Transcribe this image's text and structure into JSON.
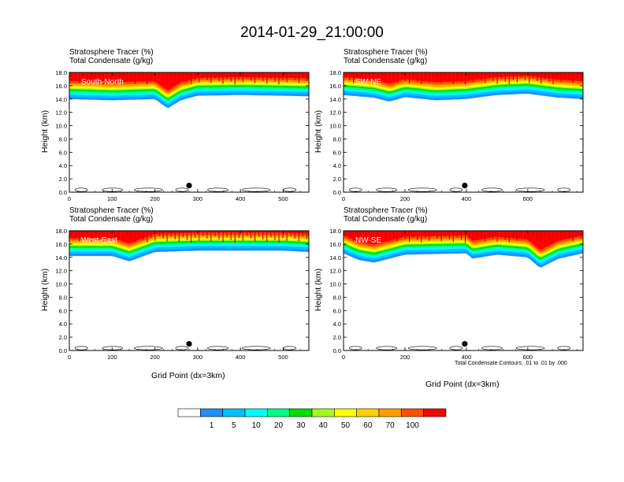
{
  "title": "2014-01-29_21:00:00",
  "panel_subtitle_line1": "Stratosphere Tracer   (%)",
  "panel_subtitle_line2": "Total Condensate   (g/kg)",
  "ylabel": "Height (km)",
  "xlabel": "Grid Point (dx=3km)",
  "contour_note": "Total Condensate Contours: .01 to .01 by .000",
  "colorbar": {
    "labels": [
      "1",
      "5",
      "10",
      "20",
      "30",
      "40",
      "50",
      "60",
      "70",
      "100"
    ],
    "colors": [
      "#ffffff",
      "#1e90ff",
      "#00bfff",
      "#00ffff",
      "#00ff80",
      "#00e000",
      "#a0ff20",
      "#ffff00",
      "#ffd000",
      "#ffa000",
      "#ff5000",
      "#ff0000"
    ]
  },
  "chart_data": [
    {
      "type": "heatmap",
      "label": "South-North",
      "xlim": [
        0,
        560
      ],
      "ylim": [
        0,
        18
      ],
      "xticks": [
        0,
        100,
        200,
        300,
        400,
        500
      ],
      "yticks": [
        0,
        2,
        4,
        6,
        8,
        10,
        12,
        14,
        16,
        18
      ],
      "tropopause_base_km": [
        [
          0,
          14.0
        ],
        [
          100,
          13.8
        ],
        [
          200,
          14.0
        ],
        [
          230,
          12.6
        ],
        [
          260,
          13.8
        ],
        [
          300,
          14.5
        ],
        [
          400,
          14.6
        ],
        [
          500,
          14.5
        ],
        [
          560,
          14.4
        ]
      ],
      "marker": [
        280,
        1.0
      ]
    },
    {
      "type": "heatmap",
      "label": "SW-NE",
      "xlim": [
        0,
        780
      ],
      "ylim": [
        0,
        18
      ],
      "xticks": [
        0,
        200,
        400,
        600
      ],
      "yticks": [
        0,
        2,
        4,
        6,
        8,
        10,
        12,
        14,
        16,
        18
      ],
      "tropopause_base_km": [
        [
          0,
          14.6
        ],
        [
          100,
          14.2
        ],
        [
          150,
          13.6
        ],
        [
          200,
          14.3
        ],
        [
          300,
          13.8
        ],
        [
          400,
          14.0
        ],
        [
          500,
          14.6
        ],
        [
          600,
          14.8
        ],
        [
          700,
          14.2
        ],
        [
          780,
          14.0
        ]
      ],
      "marker": [
        395,
        1.0
      ]
    },
    {
      "type": "heatmap",
      "label": "West-East",
      "xlim": [
        0,
        560
      ],
      "ylim": [
        0,
        18
      ],
      "xticks": [
        0,
        100,
        200,
        300,
        400,
        500
      ],
      "yticks": [
        0,
        2,
        4,
        6,
        8,
        10,
        12,
        14,
        16,
        18
      ],
      "tropopause_base_km": [
        [
          0,
          14.2
        ],
        [
          100,
          14.2
        ],
        [
          140,
          13.4
        ],
        [
          200,
          14.8
        ],
        [
          300,
          15.0
        ],
        [
          400,
          15.0
        ],
        [
          500,
          15.0
        ],
        [
          560,
          14.8
        ]
      ],
      "marker": [
        280,
        1.0
      ]
    },
    {
      "type": "heatmap",
      "label": "NW-SE",
      "xlim": [
        0,
        780
      ],
      "ylim": [
        0,
        18
      ],
      "xticks": [
        0,
        200,
        400,
        600
      ],
      "yticks": [
        0,
        2,
        4,
        6,
        8,
        10,
        12,
        14,
        16,
        18
      ],
      "tropopause_base_km": [
        [
          0,
          14.6
        ],
        [
          50,
          13.6
        ],
        [
          100,
          13.2
        ],
        [
          200,
          14.4
        ],
        [
          400,
          14.6
        ],
        [
          420,
          13.8
        ],
        [
          500,
          14.4
        ],
        [
          600,
          14.0
        ],
        [
          640,
          12.4
        ],
        [
          700,
          13.8
        ],
        [
          780,
          14.6
        ]
      ],
      "marker": [
        395,
        1.0
      ]
    }
  ]
}
